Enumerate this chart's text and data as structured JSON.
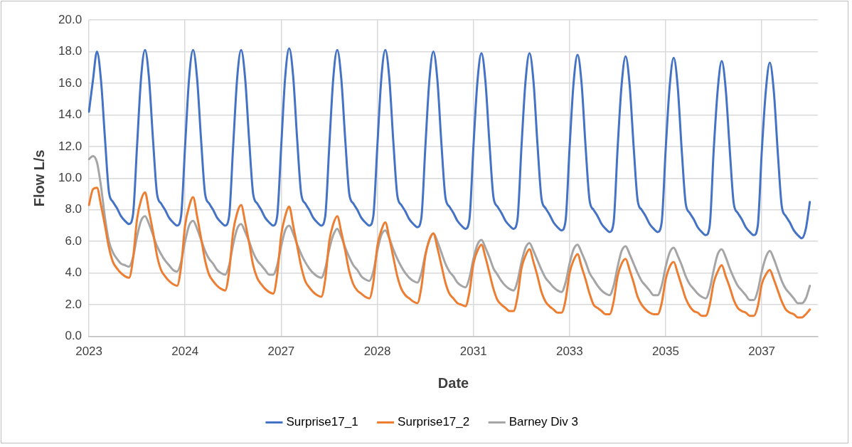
{
  "chart_data": {
    "type": "line",
    "xlabel": "Date",
    "ylabel": "Flow L/s",
    "categories": [
      "2023",
      null,
      null,
      null,
      null,
      null,
      null,
      null,
      null,
      null,
      null,
      null,
      null,
      null,
      null,
      null,
      null,
      null,
      null,
      null,
      null,
      null,
      null,
      null,
      "2024",
      null,
      null,
      null,
      null,
      null,
      null,
      null,
      null,
      null,
      null,
      null,
      null,
      null,
      null,
      null,
      null,
      null,
      null,
      null,
      null,
      null,
      null,
      null,
      "2027",
      null,
      null,
      null,
      null,
      null,
      null,
      null,
      null,
      null,
      null,
      null,
      null,
      null,
      null,
      null,
      null,
      null,
      null,
      null,
      null,
      null,
      null,
      null,
      "2028",
      null,
      null,
      null,
      null,
      null,
      null,
      null,
      null,
      null,
      null,
      null,
      null,
      null,
      null,
      null,
      null,
      null,
      null,
      null,
      null,
      null,
      null,
      null,
      "2031",
      null,
      null,
      null,
      null,
      null,
      null,
      null,
      null,
      null,
      null,
      null,
      null,
      null,
      null,
      null,
      null,
      null,
      null,
      null,
      null,
      null,
      null,
      null,
      "2033",
      null,
      null,
      null,
      null,
      null,
      null,
      null,
      null,
      null,
      null,
      null,
      null,
      null,
      null,
      null,
      null,
      null,
      null,
      null,
      null,
      null,
      null,
      null,
      "2035",
      null,
      null,
      null,
      null,
      null,
      null,
      null,
      null,
      null,
      null,
      null,
      null,
      null,
      null,
      null,
      null,
      null,
      null,
      null,
      null,
      null,
      null,
      null,
      "2037",
      null,
      null,
      null,
      null,
      null,
      null,
      null,
      null,
      null,
      null,
      null,
      null,
      null,
      null
    ],
    "series": [
      {
        "name": "Surprise17_1",
        "color": "#4472c4",
        "values": [
          14.2,
          16.2,
          18.0,
          16.2,
          12.5,
          9.1,
          8.5,
          8.1,
          7.6,
          7.3,
          7.1,
          7.7,
          12.0,
          16.3,
          18.1,
          16.3,
          12.4,
          9.0,
          8.4,
          8.0,
          7.5,
          7.2,
          7.0,
          7.6,
          12.0,
          16.3,
          18.1,
          16.3,
          12.4,
          9.0,
          8.4,
          8.0,
          7.5,
          7.2,
          7.0,
          7.6,
          12.0,
          16.3,
          18.1,
          16.3,
          12.4,
          9.0,
          8.4,
          8.0,
          7.5,
          7.2,
          7.0,
          7.6,
          12.0,
          16.4,
          18.2,
          16.4,
          12.4,
          9.0,
          8.4,
          8.0,
          7.5,
          7.2,
          7.0,
          7.6,
          12.0,
          16.3,
          18.1,
          16.3,
          12.4,
          9.0,
          8.4,
          8.0,
          7.5,
          7.2,
          7.0,
          7.6,
          12.0,
          16.3,
          18.1,
          16.3,
          12.3,
          8.9,
          8.3,
          7.9,
          7.4,
          7.1,
          6.9,
          7.5,
          12.0,
          16.2,
          18.0,
          16.2,
          12.2,
          8.8,
          8.2,
          7.8,
          7.3,
          7.0,
          6.8,
          7.4,
          12.0,
          16.1,
          17.9,
          16.1,
          12.2,
          8.8,
          8.2,
          7.8,
          7.3,
          7.0,
          6.8,
          7.4,
          12.0,
          16.1,
          17.9,
          16.1,
          12.1,
          8.7,
          8.1,
          7.7,
          7.2,
          6.9,
          6.7,
          7.3,
          11.9,
          16.0,
          17.8,
          16.0,
          12.0,
          8.6,
          8.0,
          7.6,
          7.1,
          6.8,
          6.6,
          7.2,
          11.9,
          15.9,
          17.7,
          15.9,
          12.0,
          8.6,
          8.0,
          7.6,
          7.1,
          6.8,
          6.6,
          7.2,
          11.8,
          15.8,
          17.6,
          15.8,
          11.8,
          8.4,
          7.8,
          7.4,
          6.9,
          6.6,
          6.4,
          7.0,
          11.8,
          15.6,
          17.4,
          15.6,
          11.8,
          8.4,
          7.8,
          7.4,
          6.9,
          6.6,
          6.4,
          7.0,
          11.7,
          15.5,
          17.3,
          15.5,
          11.6,
          8.2,
          7.6,
          7.2,
          6.7,
          6.4,
          6.2,
          6.8,
          8.5,
          null,
          null
        ]
      },
      {
        "name": "Surprise17_2",
        "color": "#ed7d31",
        "values": [
          8.3,
          9.3,
          9.4,
          8.3,
          7.0,
          5.6,
          4.7,
          4.3,
          4.0,
          3.8,
          3.7,
          4.9,
          7.4,
          8.6,
          9.1,
          7.9,
          6.6,
          5.1,
          4.2,
          3.8,
          3.5,
          3.3,
          3.2,
          4.4,
          7.0,
          8.2,
          8.8,
          7.6,
          6.2,
          4.8,
          3.9,
          3.5,
          3.2,
          3.0,
          2.9,
          4.1,
          6.6,
          7.8,
          8.3,
          7.2,
          5.9,
          4.5,
          3.7,
          3.3,
          3.0,
          2.8,
          2.7,
          3.9,
          6.4,
          7.6,
          8.2,
          7.0,
          5.7,
          4.4,
          3.5,
          3.1,
          2.8,
          2.6,
          2.5,
          3.6,
          6.0,
          7.1,
          7.6,
          6.6,
          5.4,
          4.1,
          3.3,
          2.9,
          2.7,
          2.5,
          2.4,
          3.4,
          5.7,
          6.7,
          7.2,
          6.2,
          5.0,
          3.8,
          3.0,
          2.6,
          2.4,
          2.2,
          2.1,
          3.1,
          5.1,
          6.1,
          6.5,
          5.6,
          4.5,
          3.4,
          2.7,
          2.4,
          2.1,
          2.0,
          1.9,
          2.8,
          4.6,
          5.4,
          5.8,
          5.0,
          4.0,
          3.0,
          2.3,
          2.0,
          1.8,
          1.6,
          1.6,
          2.5,
          4.3,
          5.1,
          5.5,
          4.7,
          3.8,
          2.8,
          2.2,
          1.9,
          1.7,
          1.5,
          1.5,
          2.3,
          4.0,
          4.8,
          5.2,
          4.4,
          3.6,
          2.7,
          2.0,
          1.8,
          1.6,
          1.4,
          1.4,
          2.2,
          3.8,
          4.6,
          4.9,
          4.2,
          3.4,
          2.5,
          2.0,
          1.7,
          1.5,
          1.4,
          1.4,
          2.1,
          3.6,
          4.4,
          4.7,
          4.0,
          3.2,
          2.4,
          1.9,
          1.6,
          1.5,
          1.3,
          1.3,
          2.0,
          3.4,
          4.1,
          4.5,
          3.8,
          3.1,
          2.3,
          1.8,
          1.6,
          1.5,
          1.3,
          1.3,
          1.9,
          3.3,
          3.9,
          4.2,
          3.6,
          2.9,
          2.2,
          1.7,
          1.5,
          1.4,
          1.2,
          1.2,
          1.4,
          1.7,
          null,
          null
        ]
      },
      {
        "name": "Barney Div 3",
        "color": "#a5a5a5",
        "values": [
          11.2,
          11.4,
          11.0,
          9.5,
          7.5,
          6.0,
          5.3,
          4.9,
          4.6,
          4.5,
          4.4,
          5.0,
          6.3,
          7.3,
          7.6,
          7.1,
          6.4,
          5.7,
          5.2,
          4.8,
          4.5,
          4.2,
          4.1,
          4.7,
          6.0,
          7.0,
          7.3,
          6.8,
          6.1,
          5.4,
          4.9,
          4.6,
          4.2,
          4.0,
          3.9,
          4.5,
          5.8,
          6.8,
          7.1,
          6.6,
          6.0,
          5.3,
          4.8,
          4.5,
          4.2,
          3.9,
          3.9,
          4.5,
          5.7,
          6.7,
          7.0,
          6.5,
          5.8,
          5.2,
          4.7,
          4.3,
          4.0,
          3.8,
          3.7,
          4.3,
          5.5,
          6.4,
          6.8,
          6.3,
          5.6,
          5.0,
          4.5,
          4.2,
          3.8,
          3.6,
          3.5,
          4.1,
          5.4,
          6.4,
          6.7,
          6.2,
          5.5,
          4.9,
          4.4,
          4.0,
          3.7,
          3.5,
          3.4,
          4.0,
          5.2,
          6.1,
          6.5,
          6.0,
          5.3,
          4.6,
          4.1,
          3.8,
          3.4,
          3.2,
          3.1,
          3.7,
          4.9,
          5.8,
          6.1,
          5.6,
          5.0,
          4.3,
          3.9,
          3.5,
          3.2,
          3.0,
          2.9,
          3.5,
          4.7,
          5.6,
          5.9,
          5.4,
          4.8,
          4.2,
          3.7,
          3.4,
          3.1,
          2.9,
          2.8,
          3.4,
          4.6,
          5.5,
          5.8,
          5.3,
          4.7,
          4.0,
          3.6,
          3.2,
          2.9,
          2.7,
          2.6,
          3.2,
          4.4,
          5.4,
          5.7,
          5.2,
          4.6,
          4.0,
          3.5,
          3.2,
          2.9,
          2.6,
          2.6,
          3.2,
          4.4,
          5.3,
          5.6,
          5.1,
          4.5,
          3.8,
          3.3,
          3.0,
          2.7,
          2.5,
          2.4,
          3.0,
          4.2,
          5.2,
          5.5,
          5.0,
          4.3,
          3.7,
          3.2,
          2.9,
          2.6,
          2.3,
          2.3,
          2.9,
          4.1,
          5.0,
          5.4,
          4.9,
          4.2,
          3.5,
          3.0,
          2.7,
          2.4,
          2.1,
          2.1,
          2.4,
          3.2,
          null,
          null
        ]
      }
    ],
    "ylim": [
      0,
      20
    ],
    "yticks": [
      {
        "value": 0,
        "label": "0.0"
      },
      {
        "value": 2,
        "label": "2.0"
      },
      {
        "value": 4,
        "label": "4.0"
      },
      {
        "value": 6,
        "label": "6.0"
      },
      {
        "value": 8,
        "label": "8.0"
      },
      {
        "value": 10,
        "label": "10.0"
      },
      {
        "value": 12,
        "label": "12.0"
      },
      {
        "value": 14,
        "label": "14.0"
      },
      {
        "value": 16,
        "label": "16.0"
      },
      {
        "value": 18,
        "label": "18.0"
      },
      {
        "value": 20,
        "label": "20.0"
      }
    ],
    "grid": true,
    "legend": "bottom",
    "marker": "none",
    "line_style": "solid"
  }
}
